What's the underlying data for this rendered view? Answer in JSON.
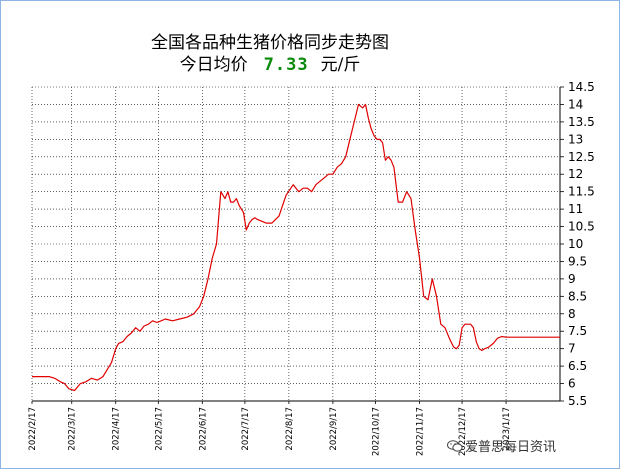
{
  "header": {
    "title": "全国各品种生猪价格同步走势图",
    "avg_prefix": "今日均价",
    "avg_value": "7.33",
    "avg_unit": "元/斤"
  },
  "watermark": {
    "text": "爱普思每日资讯",
    "icon": "wechat-icon"
  },
  "colors": {
    "line": "#e00000",
    "grid": "#000000",
    "frame": "#8db4e2",
    "avg_value": "#0a8a0a"
  },
  "chart_data": {
    "type": "line",
    "title": "全国各品种生猪价格同步走势图",
    "xlabel": "",
    "ylabel": "",
    "ylim": [
      5.5,
      14.5
    ],
    "yticks": [
      5.5,
      6,
      6.5,
      7,
      7.5,
      8,
      8.5,
      9,
      9.5,
      10,
      10.5,
      11,
      11.5,
      12,
      12.5,
      13,
      13.5,
      14,
      14.5
    ],
    "ytick_labels": [
      "5.5",
      "6",
      "6.5",
      "7",
      "7.5",
      "8",
      "8.5",
      "9",
      "9.5",
      "10",
      "10.5",
      "11",
      "11.5",
      "12",
      "12.5",
      "13",
      "13.5",
      "14",
      "14.5"
    ],
    "xlim": [
      "2022-02-17",
      "2023-02-24"
    ],
    "xticks": [
      "2022-02-17",
      "2022-03-17",
      "2022-04-17",
      "2022-05-17",
      "2022-06-17",
      "2022-07-17",
      "2022-08-17",
      "2022-09-17",
      "2022-10-17",
      "2022-11-17",
      "2022-12-17",
      "2023-01-17"
    ],
    "xtick_labels": [
      "2022/2/17",
      "2022/3/17",
      "2022/4/17",
      "2022/5/17",
      "2022/6/17",
      "2022/7/17",
      "2022/8/17",
      "2022/9/17",
      "2022/10/17",
      "2022/11/17",
      "2022/12/17",
      "2023/1/17"
    ],
    "grid": true,
    "axis_side": "right",
    "series": [
      {
        "color": "#e00000",
        "x": [
          "2022-02-17",
          "2022-02-24",
          "2022-03-01",
          "2022-03-05",
          "2022-03-09",
          "2022-03-12",
          "2022-03-15",
          "2022-03-19",
          "2022-03-23",
          "2022-03-27",
          "2022-03-31",
          "2022-04-04",
          "2022-04-08",
          "2022-04-11",
          "2022-04-14",
          "2022-04-17",
          "2022-04-19",
          "2022-04-22",
          "2022-04-25",
          "2022-04-28",
          "2022-05-01",
          "2022-05-04",
          "2022-05-07",
          "2022-05-10",
          "2022-05-13",
          "2022-05-16",
          "2022-05-19",
          "2022-05-22",
          "2022-05-27",
          "2022-06-01",
          "2022-06-06",
          "2022-06-11",
          "2022-06-15",
          "2022-06-18",
          "2022-06-21",
          "2022-06-24",
          "2022-06-27",
          "2022-06-30",
          "2022-07-03",
          "2022-07-05",
          "2022-07-07",
          "2022-07-09",
          "2022-07-11",
          "2022-07-13",
          "2022-07-16",
          "2022-07-18",
          "2022-07-20",
          "2022-07-22",
          "2022-07-24",
          "2022-07-26",
          "2022-07-29",
          "2022-08-01",
          "2022-08-05",
          "2022-08-10",
          "2022-08-15",
          "2022-08-20",
          "2022-08-24",
          "2022-08-27",
          "2022-08-30",
          "2022-09-02",
          "2022-09-05",
          "2022-09-08",
          "2022-09-11",
          "2022-09-14",
          "2022-09-17",
          "2022-09-20",
          "2022-09-23",
          "2022-09-26",
          "2022-09-29",
          "2022-10-02",
          "2022-10-05",
          "2022-10-08",
          "2022-10-10",
          "2022-10-12",
          "2022-10-14",
          "2022-10-16",
          "2022-10-18",
          "2022-10-20",
          "2022-10-22",
          "2022-10-24",
          "2022-10-26",
          "2022-10-28",
          "2022-10-30",
          "2022-11-02",
          "2022-11-05",
          "2022-11-08",
          "2022-11-11",
          "2022-11-14",
          "2022-11-17",
          "2022-11-20",
          "2022-11-23",
          "2022-11-26",
          "2022-11-29",
          "2022-12-02",
          "2022-12-05",
          "2022-12-08",
          "2022-12-11",
          "2022-12-13",
          "2022-12-15",
          "2022-12-17",
          "2022-12-19",
          "2022-12-21",
          "2022-12-23",
          "2022-12-25",
          "2022-12-27",
          "2022-12-29",
          "2022-12-31",
          "2023-01-02",
          "2023-01-05",
          "2023-01-08",
          "2023-01-11",
          "2023-01-14",
          "2023-01-17",
          "2023-01-20",
          "2023-01-23",
          "2023-01-26",
          "2023-01-29",
          "2023-02-01",
          "2023-02-04",
          "2023-02-07",
          "2023-02-10",
          "2023-02-14",
          "2023-02-18",
          "2023-02-22",
          "2023-02-24"
        ],
        "values": [
          6.2,
          6.2,
          6.2,
          6.15,
          6.05,
          6.0,
          5.85,
          5.8,
          6.0,
          6.05,
          6.15,
          6.1,
          6.2,
          6.4,
          6.6,
          7.0,
          7.15,
          7.2,
          7.35,
          7.45,
          7.6,
          7.5,
          7.65,
          7.7,
          7.8,
          7.75,
          7.8,
          7.85,
          7.8,
          7.85,
          7.9,
          8.0,
          8.2,
          8.5,
          9.0,
          9.6,
          10.0,
          11.5,
          11.3,
          11.5,
          11.2,
          11.2,
          11.3,
          11.1,
          10.9,
          10.4,
          10.6,
          10.7,
          10.75,
          10.7,
          10.65,
          10.6,
          10.6,
          10.8,
          11.4,
          11.7,
          11.5,
          11.6,
          11.6,
          11.5,
          11.7,
          11.8,
          11.9,
          12.0,
          12.0,
          12.2,
          12.3,
          12.5,
          13.0,
          13.5,
          14.0,
          13.9,
          14.0,
          13.6,
          13.3,
          13.1,
          13.0,
          13.0,
          12.9,
          12.4,
          12.5,
          12.4,
          12.2,
          11.2,
          11.2,
          11.5,
          11.3,
          10.4,
          9.6,
          8.5,
          8.4,
          9.0,
          8.5,
          7.7,
          7.6,
          7.3,
          7.05,
          7.0,
          7.1,
          7.6,
          7.7,
          7.7,
          7.7,
          7.6,
          7.2,
          7.0,
          6.95,
          7.0,
          7.05,
          7.15,
          7.3,
          7.35,
          7.33,
          7.33,
          7.33,
          7.33,
          7.33,
          7.33,
          7.33,
          7.33,
          7.33,
          7.33,
          7.33,
          7.33,
          7.33
        ]
      }
    ]
  }
}
